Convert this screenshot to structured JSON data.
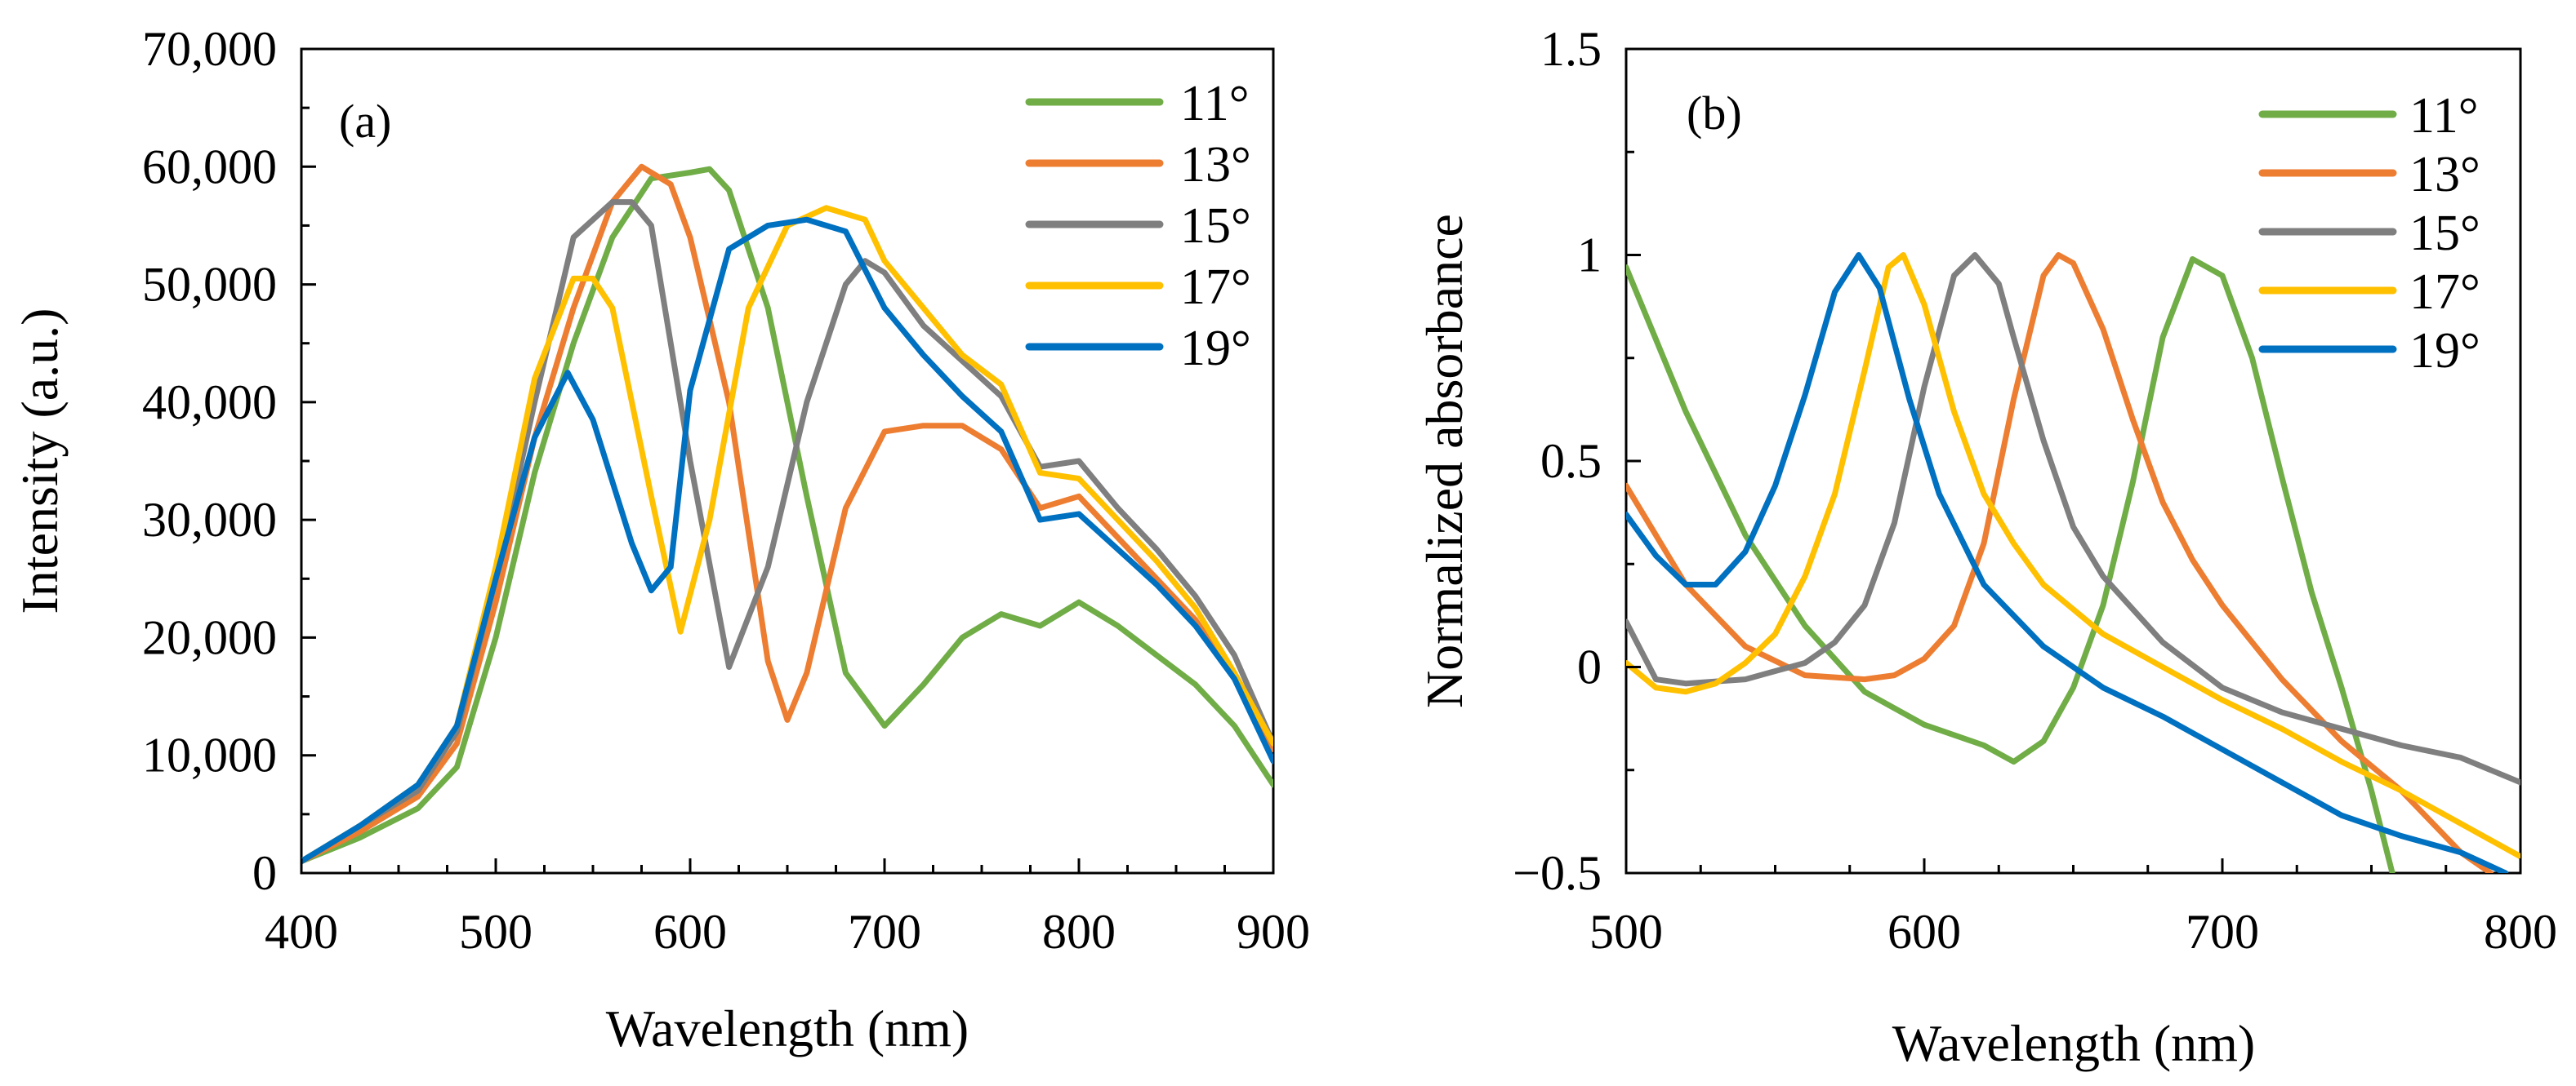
{
  "chart_data": [
    {
      "type": "line",
      "panel_label": "(a)",
      "xlabel": "Wavelength (nm)",
      "ylabel": "Intensity (a.u.)",
      "xlim": [
        400,
        900
      ],
      "ylim": [
        0,
        70000
      ],
      "xticks": [
        400,
        500,
        600,
        700,
        800,
        900
      ],
      "xtick_labels": [
        "400",
        "500",
        "600",
        "700",
        "800",
        "900"
      ],
      "yticks": [
        0,
        10000,
        20000,
        30000,
        40000,
        50000,
        60000,
        70000
      ],
      "ytick_labels": [
        "0",
        "10,000",
        "20,000",
        "30,000",
        "40,000",
        "50,000",
        "60,000",
        "70,000"
      ],
      "legend_position": "top-right",
      "series": [
        {
          "name": "11°",
          "color": "#70AD47",
          "x": [
            400,
            430,
            460,
            480,
            500,
            520,
            540,
            560,
            580,
            600,
            610,
            620,
            640,
            660,
            680,
            700,
            720,
            740,
            760,
            780,
            800,
            820,
            840,
            860,
            880,
            900
          ],
          "y": [
            1000,
            3000,
            5500,
            9000,
            20000,
            34000,
            45000,
            54000,
            59000,
            59500,
            59800,
            58000,
            48000,
            32000,
            17000,
            12500,
            16000,
            20000,
            22000,
            21000,
            23000,
            21000,
            18500,
            16000,
            12500,
            7500
          ]
        },
        {
          "name": "13°",
          "color": "#ED7D31",
          "x": [
            400,
            430,
            460,
            480,
            500,
            520,
            540,
            560,
            575,
            590,
            600,
            620,
            640,
            650,
            660,
            680,
            700,
            720,
            740,
            760,
            780,
            800,
            820,
            840,
            860,
            880,
            900
          ],
          "y": [
            1000,
            3500,
            6500,
            11000,
            23000,
            37000,
            48000,
            57000,
            60000,
            58500,
            54000,
            40000,
            18000,
            13000,
            17000,
            31000,
            37500,
            38000,
            38000,
            36000,
            31000,
            32000,
            28500,
            25000,
            21500,
            16500,
            10500
          ]
        },
        {
          "name": "15°",
          "color": "#7F7F7F",
          "x": [
            400,
            430,
            460,
            480,
            500,
            520,
            540,
            560,
            570,
            580,
            600,
            620,
            640,
            660,
            680,
            690,
            700,
            720,
            740,
            760,
            780,
            800,
            820,
            840,
            860,
            880,
            900
          ],
          "y": [
            1000,
            4000,
            7000,
            12000,
            25000,
            40000,
            54000,
            57000,
            57000,
            55000,
            35000,
            17500,
            26000,
            40000,
            50000,
            52000,
            51000,
            46500,
            43500,
            40500,
            34500,
            35000,
            31000,
            27500,
            23500,
            18500,
            11000
          ]
        },
        {
          "name": "17°",
          "color": "#FFC000",
          "x": [
            400,
            430,
            460,
            480,
            500,
            520,
            540,
            550,
            560,
            580,
            595,
            610,
            630,
            650,
            670,
            690,
            700,
            720,
            740,
            760,
            780,
            800,
            820,
            840,
            860,
            880,
            900
          ],
          "y": [
            1000,
            4000,
            7500,
            12500,
            26000,
            42000,
            50500,
            50500,
            48000,
            32000,
            20500,
            30000,
            48000,
            55000,
            56500,
            55500,
            52000,
            48000,
            44000,
            41500,
            34000,
            33500,
            30000,
            26500,
            22500,
            17000,
            11000
          ]
        },
        {
          "name": "19°",
          "color": "#0070C0",
          "x": [
            400,
            430,
            460,
            480,
            500,
            520,
            537,
            550,
            570,
            580,
            590,
            600,
            620,
            640,
            660,
            680,
            700,
            720,
            740,
            760,
            780,
            800,
            820,
            840,
            860,
            880,
            900
          ],
          "y": [
            1000,
            4000,
            7500,
            12500,
            25000,
            37000,
            42500,
            38500,
            28000,
            24000,
            26000,
            41000,
            53000,
            55000,
            55500,
            54500,
            48000,
            44000,
            40500,
            37500,
            30000,
            30500,
            27500,
            24500,
            21000,
            16500,
            9500
          ]
        }
      ]
    },
    {
      "type": "line",
      "panel_label": "(b)",
      "xlabel": "Wavelength (nm)",
      "ylabel": "Normalized absorbance",
      "xlim": [
        500,
        800
      ],
      "ylim": [
        -0.5,
        1.5
      ],
      "xticks": [
        500,
        600,
        700,
        800
      ],
      "xtick_labels": [
        "500",
        "600",
        "700",
        "800"
      ],
      "yticks": [
        -0.5,
        0,
        0.5,
        1,
        1.5
      ],
      "ytick_labels": [
        "−0.5",
        "0",
        "0.5",
        "1",
        "1.5"
      ],
      "legend_position": "top-right",
      "series": [
        {
          "name": "11°",
          "color": "#70AD47",
          "x": [
            500,
            520,
            540,
            560,
            580,
            600,
            620,
            630,
            640,
            650,
            660,
            670,
            680,
            690,
            700,
            710,
            720,
            730,
            740,
            750,
            757
          ],
          "y": [
            0.97,
            0.62,
            0.32,
            0.1,
            -0.06,
            -0.14,
            -0.19,
            -0.23,
            -0.18,
            -0.05,
            0.15,
            0.45,
            0.8,
            0.99,
            0.95,
            0.75,
            0.46,
            0.18,
            -0.05,
            -0.3,
            -0.5
          ]
        },
        {
          "name": "13°",
          "color": "#ED7D31",
          "x": [
            500,
            520,
            540,
            560,
            580,
            590,
            600,
            610,
            620,
            630,
            640,
            645,
            650,
            660,
            670,
            680,
            690,
            700,
            720,
            740,
            760,
            780,
            790
          ],
          "y": [
            0.44,
            0.2,
            0.05,
            -0.02,
            -0.03,
            -0.02,
            0.02,
            0.1,
            0.3,
            0.65,
            0.95,
            1.0,
            0.98,
            0.82,
            0.6,
            0.4,
            0.26,
            0.15,
            -0.03,
            -0.18,
            -0.3,
            -0.45,
            -0.5
          ]
        },
        {
          "name": "15°",
          "color": "#7F7F7F",
          "x": [
            500,
            510,
            520,
            540,
            560,
            570,
            580,
            590,
            600,
            610,
            617,
            625,
            630,
            640,
            650,
            660,
            680,
            700,
            720,
            740,
            760,
            780,
            800
          ],
          "y": [
            0.11,
            -0.03,
            -0.04,
            -0.03,
            0.01,
            0.06,
            0.15,
            0.35,
            0.68,
            0.95,
            1.0,
            0.93,
            0.8,
            0.55,
            0.34,
            0.22,
            0.06,
            -0.05,
            -0.11,
            -0.15,
            -0.19,
            -0.22,
            -0.28
          ]
        },
        {
          "name": "17°",
          "color": "#FFC000",
          "x": [
            500,
            510,
            520,
            530,
            540,
            550,
            560,
            570,
            580,
            588,
            593,
            600,
            610,
            620,
            630,
            640,
            660,
            680,
            700,
            720,
            740,
            760,
            780,
            800
          ],
          "y": [
            0.01,
            -0.05,
            -0.06,
            -0.04,
            0.01,
            0.08,
            0.22,
            0.42,
            0.72,
            0.97,
            1.0,
            0.88,
            0.62,
            0.42,
            0.3,
            0.2,
            0.08,
            0.0,
            -0.08,
            -0.15,
            -0.23,
            -0.3,
            -0.38,
            -0.46
          ]
        },
        {
          "name": "19°",
          "color": "#0070C0",
          "x": [
            500,
            510,
            520,
            530,
            540,
            550,
            560,
            570,
            578,
            585,
            595,
            605,
            620,
            640,
            660,
            680,
            700,
            720,
            740,
            760,
            780,
            795
          ],
          "y": [
            0.37,
            0.27,
            0.2,
            0.2,
            0.28,
            0.44,
            0.66,
            0.91,
            1.0,
            0.92,
            0.65,
            0.42,
            0.2,
            0.05,
            -0.05,
            -0.12,
            -0.2,
            -0.28,
            -0.36,
            -0.41,
            -0.45,
            -0.5
          ]
        }
      ]
    }
  ]
}
